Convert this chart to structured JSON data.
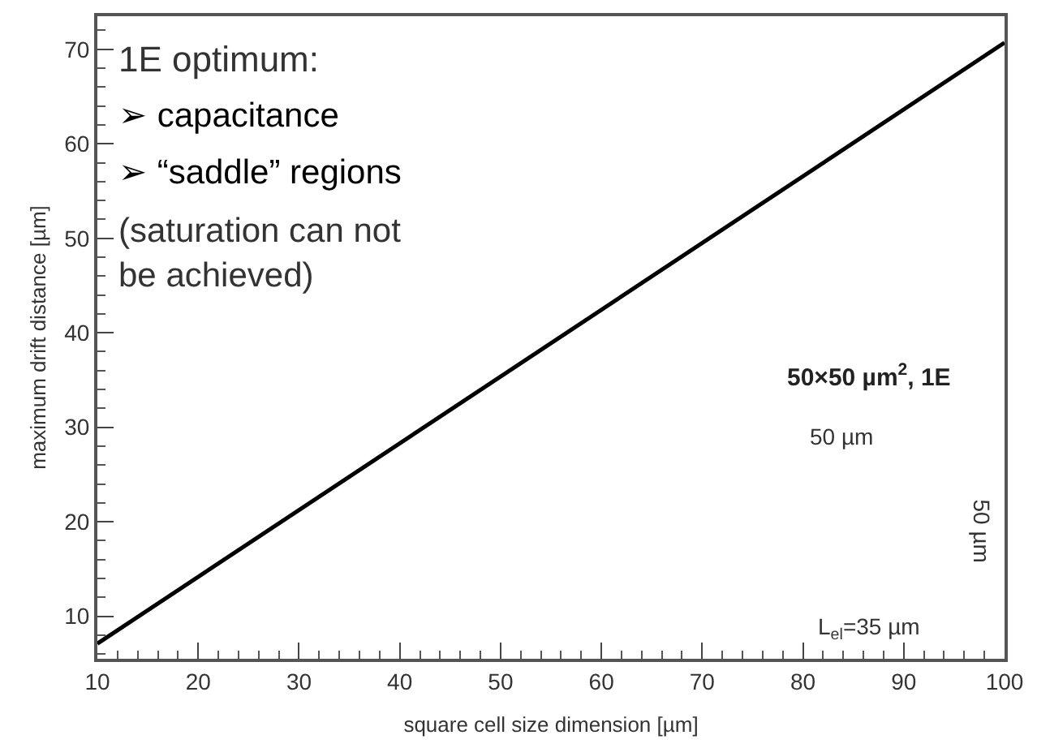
{
  "chart_data": {
    "type": "line",
    "xlabel": "square cell size dimension [µm]",
    "ylabel": "maximum drift distance [µm]",
    "x": [
      10,
      100
    ],
    "series": [
      {
        "color": "#000000",
        "values": [
          7.1,
          70.7
        ]
      }
    ],
    "xlim": [
      10,
      100
    ],
    "xticks": [
      10,
      20,
      30,
      40,
      50,
      60,
      70,
      80,
      90,
      100
    ],
    "ylim": [
      5.5,
      73.5
    ],
    "yticks": [
      10,
      20,
      30,
      40,
      50,
      60,
      70
    ],
    "marker": "none",
    "line_style": "solid",
    "annotations": [
      "1E optimum:",
      "➢ capacitance",
      "➢ “saddle” regions",
      "(saturation can not\nbe achieved)",
      "50×50 µm$^{2}$, 1E",
      "50 µm",
      "50 µm",
      "L$_{el}$=35 µm"
    ]
  }
}
